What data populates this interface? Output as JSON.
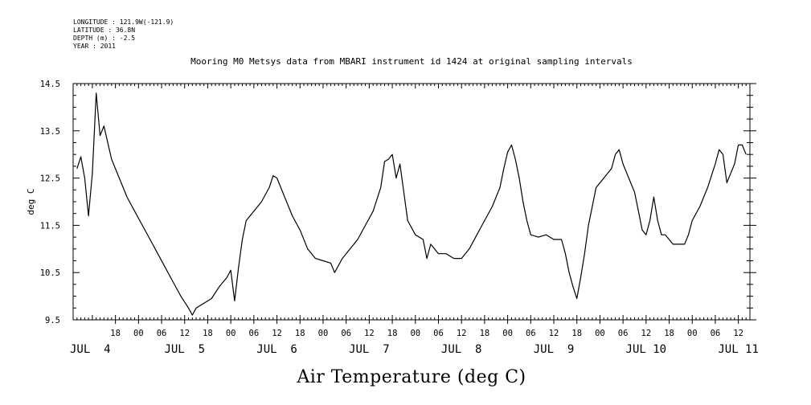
{
  "header": {
    "longitude": "LONGITUDE : 121.9W(-121.9)",
    "latitude": "LATITUDE : 36.8N",
    "depth": "DEPTH (m) : -2.5",
    "year": "YEAR : 2011"
  },
  "chart_data": {
    "type": "line",
    "title": "Mooring M0 Metsys data from MBARI instrument id 1424 at original sampling intervals",
    "xlabel": "Air Temperature (deg C)",
    "ylabel": "deg C",
    "ylim": [
      9.5,
      14.5
    ],
    "yticks": [
      "9.5",
      "10.5",
      "11.5",
      "12.5",
      "13.5",
      "14.5"
    ],
    "xlim": [
      "2011-07-04T07:00",
      "2011-07-11T15:00"
    ],
    "x_hour_ticks": [
      {
        "t": "2011-07-04T18:00",
        "label": "18"
      },
      {
        "t": "2011-07-05T00:00",
        "label": "00"
      },
      {
        "t": "2011-07-05T06:00",
        "label": "06"
      },
      {
        "t": "2011-07-05T12:00",
        "label": "12"
      },
      {
        "t": "2011-07-05T18:00",
        "label": "18"
      },
      {
        "t": "2011-07-06T00:00",
        "label": "00"
      },
      {
        "t": "2011-07-06T06:00",
        "label": "06"
      },
      {
        "t": "2011-07-06T12:00",
        "label": "12"
      },
      {
        "t": "2011-07-06T18:00",
        "label": "18"
      },
      {
        "t": "2011-07-07T00:00",
        "label": "00"
      },
      {
        "t": "2011-07-07T06:00",
        "label": "06"
      },
      {
        "t": "2011-07-07T12:00",
        "label": "12"
      },
      {
        "t": "2011-07-07T18:00",
        "label": "18"
      },
      {
        "t": "2011-07-08T00:00",
        "label": "00"
      },
      {
        "t": "2011-07-08T06:00",
        "label": "06"
      },
      {
        "t": "2011-07-08T12:00",
        "label": "12"
      },
      {
        "t": "2011-07-08T18:00",
        "label": "18"
      },
      {
        "t": "2011-07-09T00:00",
        "label": "00"
      },
      {
        "t": "2011-07-09T06:00",
        "label": "06"
      },
      {
        "t": "2011-07-09T12:00",
        "label": "12"
      },
      {
        "t": "2011-07-09T18:00",
        "label": "18"
      },
      {
        "t": "2011-07-10T00:00",
        "label": "00"
      },
      {
        "t": "2011-07-10T06:00",
        "label": "06"
      },
      {
        "t": "2011-07-10T12:00",
        "label": "12"
      },
      {
        "t": "2011-07-10T18:00",
        "label": "18"
      },
      {
        "t": "2011-07-11T00:00",
        "label": "00"
      },
      {
        "t": "2011-07-11T06:00",
        "label": "06"
      },
      {
        "t": "2011-07-11T12:00",
        "label": "12"
      }
    ],
    "x_day_labels": [
      {
        "t": "2011-07-04T07:00",
        "label": "JUL  4"
      },
      {
        "t": "2011-07-05T12:00",
        "label": "JUL  5"
      },
      {
        "t": "2011-07-06T12:00",
        "label": "JUL  6"
      },
      {
        "t": "2011-07-07T12:00",
        "label": "JUL  7"
      },
      {
        "t": "2011-07-08T12:00",
        "label": "JUL  8"
      },
      {
        "t": "2011-07-09T12:00",
        "label": "JUL  9"
      },
      {
        "t": "2011-07-10T12:00",
        "label": "JUL 10"
      },
      {
        "t": "2011-07-11T12:00",
        "label": "JUL 11"
      }
    ],
    "series": [
      {
        "points": [
          [
            "2011-07-04T08:00",
            12.7
          ],
          [
            "2011-07-04T09:00",
            12.95
          ],
          [
            "2011-07-04T10:00",
            12.5
          ],
          [
            "2011-07-04T11:00",
            11.7
          ],
          [
            "2011-07-04T12:00",
            12.6
          ],
          [
            "2011-07-04T13:00",
            14.3
          ],
          [
            "2011-07-04T14:00",
            13.4
          ],
          [
            "2011-07-04T15:00",
            13.6
          ],
          [
            "2011-07-04T17:00",
            12.9
          ],
          [
            "2011-07-04T19:00",
            12.5
          ],
          [
            "2011-07-04T21:00",
            12.1
          ],
          [
            "2011-07-04T23:00",
            11.8
          ],
          [
            "2011-07-05T01:00",
            11.5
          ],
          [
            "2011-07-05T03:00",
            11.2
          ],
          [
            "2011-07-05T05:00",
            10.9
          ],
          [
            "2011-07-05T07:00",
            10.6
          ],
          [
            "2011-07-05T09:00",
            10.3
          ],
          [
            "2011-07-05T11:00",
            10.0
          ],
          [
            "2011-07-05T13:00",
            9.75
          ],
          [
            "2011-07-05T14:00",
            9.6
          ],
          [
            "2011-07-05T15:00",
            9.75
          ],
          [
            "2011-07-05T17:00",
            9.85
          ],
          [
            "2011-07-05T19:00",
            9.95
          ],
          [
            "2011-07-05T21:00",
            10.2
          ],
          [
            "2011-07-05T23:00",
            10.4
          ],
          [
            "2011-07-06T00:00",
            10.55
          ],
          [
            "2011-07-06T01:00",
            9.9
          ],
          [
            "2011-07-06T02:00",
            10.6
          ],
          [
            "2011-07-06T03:00",
            11.2
          ],
          [
            "2011-07-06T04:00",
            11.6
          ],
          [
            "2011-07-06T06:00",
            11.8
          ],
          [
            "2011-07-06T08:00",
            12.0
          ],
          [
            "2011-07-06T10:00",
            12.3
          ],
          [
            "2011-07-06T11:00",
            12.55
          ],
          [
            "2011-07-06T12:00",
            12.5
          ],
          [
            "2011-07-06T14:00",
            12.1
          ],
          [
            "2011-07-06T16:00",
            11.7
          ],
          [
            "2011-07-06T18:00",
            11.4
          ],
          [
            "2011-07-06T20:00",
            11.0
          ],
          [
            "2011-07-06T22:00",
            10.8
          ],
          [
            "2011-07-07T00:00",
            10.75
          ],
          [
            "2011-07-07T02:00",
            10.7
          ],
          [
            "2011-07-07T03:00",
            10.5
          ],
          [
            "2011-07-07T05:00",
            10.8
          ],
          [
            "2011-07-07T07:00",
            11.0
          ],
          [
            "2011-07-07T09:00",
            11.2
          ],
          [
            "2011-07-07T11:00",
            11.5
          ],
          [
            "2011-07-07T13:00",
            11.8
          ],
          [
            "2011-07-07T15:00",
            12.3
          ],
          [
            "2011-07-07T16:00",
            12.85
          ],
          [
            "2011-07-07T17:00",
            12.9
          ],
          [
            "2011-07-07T18:00",
            13.0
          ],
          [
            "2011-07-07T19:00",
            12.5
          ],
          [
            "2011-07-07T20:00",
            12.8
          ],
          [
            "2011-07-07T21:00",
            12.2
          ],
          [
            "2011-07-07T22:00",
            11.6
          ],
          [
            "2011-07-08T00:00",
            11.3
          ],
          [
            "2011-07-08T02:00",
            11.2
          ],
          [
            "2011-07-08T03:00",
            10.8
          ],
          [
            "2011-07-08T04:00",
            11.1
          ],
          [
            "2011-07-08T06:00",
            10.9
          ],
          [
            "2011-07-08T08:00",
            10.9
          ],
          [
            "2011-07-08T10:00",
            10.8
          ],
          [
            "2011-07-08T12:00",
            10.8
          ],
          [
            "2011-07-08T13:00",
            10.9
          ],
          [
            "2011-07-08T14:00",
            11.0
          ],
          [
            "2011-07-08T16:00",
            11.3
          ],
          [
            "2011-07-08T18:00",
            11.6
          ],
          [
            "2011-07-08T20:00",
            11.9
          ],
          [
            "2011-07-08T22:00",
            12.3
          ],
          [
            "2011-07-08T23:00",
            12.7
          ],
          [
            "2011-07-09T00:00",
            13.05
          ],
          [
            "2011-07-09T01:00",
            13.2
          ],
          [
            "2011-07-09T02:00",
            12.9
          ],
          [
            "2011-07-09T03:00",
            12.5
          ],
          [
            "2011-07-09T04:00",
            12.0
          ],
          [
            "2011-07-09T05:00",
            11.6
          ],
          [
            "2011-07-09T06:00",
            11.3
          ],
          [
            "2011-07-09T08:00",
            11.25
          ],
          [
            "2011-07-09T10:00",
            11.3
          ],
          [
            "2011-07-09T11:00",
            11.25
          ],
          [
            "2011-07-09T12:00",
            11.2
          ],
          [
            "2011-07-09T13:00",
            11.2
          ],
          [
            "2011-07-09T14:00",
            11.2
          ],
          [
            "2011-07-09T15:00",
            10.9
          ],
          [
            "2011-07-09T16:00",
            10.5
          ],
          [
            "2011-07-09T17:00",
            10.2
          ],
          [
            "2011-07-09T18:00",
            9.95
          ],
          [
            "2011-07-09T19:00",
            10.4
          ],
          [
            "2011-07-09T20:00",
            10.9
          ],
          [
            "2011-07-09T21:00",
            11.5
          ],
          [
            "2011-07-09T22:00",
            11.9
          ],
          [
            "2011-07-09T23:00",
            12.3
          ],
          [
            "2011-07-10T01:00",
            12.5
          ],
          [
            "2011-07-10T03:00",
            12.7
          ],
          [
            "2011-07-10T04:00",
            13.0
          ],
          [
            "2011-07-10T05:00",
            13.1
          ],
          [
            "2011-07-10T06:00",
            12.8
          ],
          [
            "2011-07-10T07:00",
            12.6
          ],
          [
            "2011-07-10T08:00",
            12.4
          ],
          [
            "2011-07-10T09:00",
            12.2
          ],
          [
            "2011-07-10T10:00",
            11.8
          ],
          [
            "2011-07-10T11:00",
            11.4
          ],
          [
            "2011-07-10T12:00",
            11.3
          ],
          [
            "2011-07-10T13:00",
            11.6
          ],
          [
            "2011-07-10T14:00",
            12.1
          ],
          [
            "2011-07-10T15:00",
            11.6
          ],
          [
            "2011-07-10T16:00",
            11.3
          ],
          [
            "2011-07-10T17:00",
            11.3
          ],
          [
            "2011-07-10T18:00",
            11.2
          ],
          [
            "2011-07-10T19:00",
            11.1
          ],
          [
            "2011-07-10T20:00",
            11.1
          ],
          [
            "2011-07-10T21:00",
            11.1
          ],
          [
            "2011-07-10T22:00",
            11.1
          ],
          [
            "2011-07-10T23:00",
            11.3
          ],
          [
            "2011-07-11T00:00",
            11.6
          ],
          [
            "2011-07-11T02:00",
            11.9
          ],
          [
            "2011-07-11T04:00",
            12.3
          ],
          [
            "2011-07-11T06:00",
            12.8
          ],
          [
            "2011-07-11T07:00",
            13.1
          ],
          [
            "2011-07-11T08:00",
            13.0
          ],
          [
            "2011-07-11T09:00",
            12.4
          ],
          [
            "2011-07-11T10:00",
            12.6
          ],
          [
            "2011-07-11T11:00",
            12.8
          ],
          [
            "2011-07-11T12:00",
            13.2
          ],
          [
            "2011-07-11T13:00",
            13.2
          ],
          [
            "2011-07-11T14:00",
            13.0
          ]
        ]
      }
    ]
  }
}
